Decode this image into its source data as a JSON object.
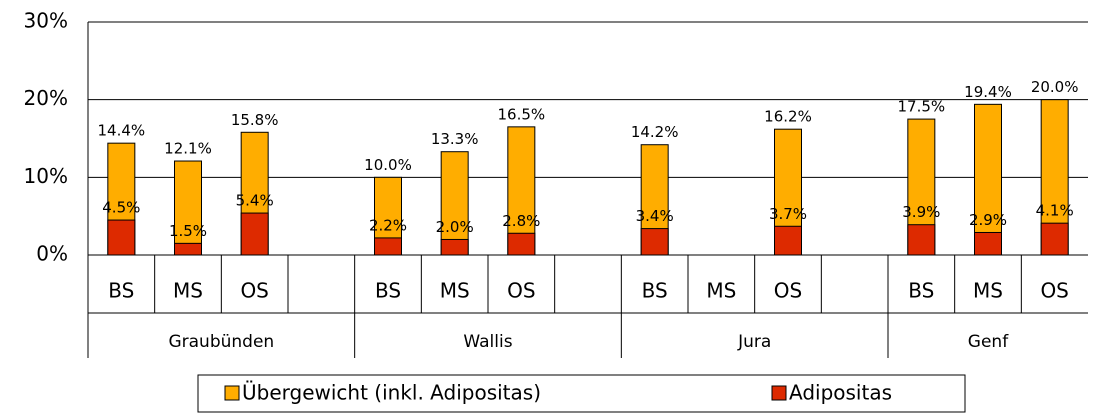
{
  "chart_data": {
    "type": "bar",
    "categories": [
      "BS",
      "MS",
      "OS",
      null,
      "BS",
      "MS",
      "OS",
      null,
      "BS",
      "MS",
      "OS",
      null,
      "BS",
      "MS",
      "OS"
    ],
    "groups": [
      "Graubünden",
      "Wallis",
      "Jura",
      "Genf"
    ],
    "series": [
      {
        "name": "Übergewicht (inkl. Adipositas)",
        "color": "#ffad00",
        "values": [
          14.4,
          12.1,
          15.8,
          null,
          10.0,
          13.3,
          16.5,
          null,
          14.2,
          null,
          16.2,
          null,
          17.5,
          19.4,
          20.0
        ],
        "value_labels": [
          "14.4%",
          "12.1%",
          "15.8%",
          null,
          "10.0%",
          "13.3%",
          "16.5%",
          null,
          "14.2%",
          null,
          "16.2%",
          null,
          "17.5%",
          "19.4%",
          "20.0%"
        ]
      },
      {
        "name": "Adipositas",
        "color": "#dd2a00",
        "values": [
          4.5,
          1.5,
          5.4,
          null,
          2.2,
          2.0,
          2.8,
          null,
          3.4,
          null,
          3.7,
          null,
          3.9,
          2.9,
          4.1
        ],
        "value_labels": [
          "4.5%",
          "1.5%",
          "5.4%",
          null,
          "2.2%",
          "2.0%",
          "2.8%",
          null,
          "3.4%",
          null,
          "3.7%",
          null,
          "3.9%",
          "2.9%",
          "4.1%"
        ]
      }
    ],
    "ylim": [
      0,
      30
    ],
    "yticks": [
      {
        "value": 0,
        "label": "0%"
      },
      {
        "value": 10,
        "label": "10%"
      },
      {
        "value": 20,
        "label": "20%"
      },
      {
        "value": 30,
        "label": "30%"
      }
    ],
    "grid": true,
    "legend": "bottom"
  }
}
